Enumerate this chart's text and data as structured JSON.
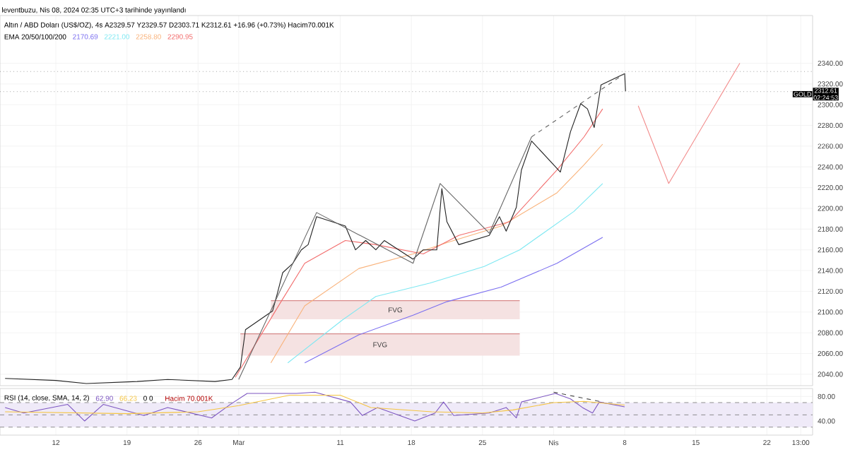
{
  "chart_data": [
    {
      "type": "line",
      "title": "Altın / ABD Doları (US$/OZ), 4s  A2329.57  Y2329.57  D2303.71  K2312.61  +16.96 (+0.73%)  Hacim70.001K",
      "legend_title": "EMA 20/50/100/200",
      "legend": "top left",
      "grid": true,
      "tick_labels": "y",
      "xlim": [
        "2024-02-06T12:00",
        "2024-04-26T12:00"
      ],
      "ylim": [
        2029,
        2386
      ],
      "xticks": [
        {
          "value": "2024-02-12",
          "label": null
        },
        {
          "value": "2024-02-19",
          "label": null
        },
        {
          "value": "2024-02-26",
          "label": null
        },
        {
          "value": "2024-03-01",
          "label": null
        },
        {
          "value": "2024-03-11",
          "label": null
        },
        {
          "value": "2024-03-18",
          "label": null
        },
        {
          "value": "2024-03-25",
          "label": null
        },
        {
          "value": "2024-04-01",
          "label": null
        },
        {
          "value": "2024-04-08",
          "label": null
        },
        {
          "value": "2024-04-15",
          "label": null
        },
        {
          "value": "2024-04-22",
          "label": null
        },
        {
          "value": "2024-04-25T08:00",
          "label": null
        }
      ],
      "yticks": [
        {
          "value": 2040,
          "label": "2040.00"
        },
        {
          "value": 2060,
          "label": "2060.00"
        },
        {
          "value": 2080,
          "label": "2080.00"
        },
        {
          "value": 2100,
          "label": "2100.00"
        },
        {
          "value": 2120,
          "label": "2120.00"
        },
        {
          "value": 2140,
          "label": "2140.00"
        },
        {
          "value": 2160,
          "label": "2160.00"
        },
        {
          "value": 2180,
          "label": "2180.00"
        },
        {
          "value": 2200,
          "label": "2200.00"
        },
        {
          "value": 2220,
          "label": "2220.00"
        },
        {
          "value": 2240,
          "label": "2240.00"
        },
        {
          "value": 2260,
          "label": "2260.00"
        },
        {
          "value": 2280,
          "label": "2280.00"
        },
        {
          "value": 2300,
          "label": "2300.00"
        },
        {
          "value": 2320,
          "label": "2320.00"
        },
        {
          "value": 2340,
          "label": "2340.00"
        }
      ],
      "series": [
        {
          "type": "line",
          "name": "FVG",
          "color": "#d98c8c",
          "x": [
            "2024-03-04T04:00",
            "2024-03-28T16:00"
          ],
          "values": [
            2111,
            2111
          ],
          "lower": [
            2093,
            2093
          ],
          "upper": [
            2111,
            2111
          ]
        },
        {
          "type": "line",
          "name": "FVG",
          "color": "#d98c8c",
          "x": [
            "2024-03-01T04:00",
            "2024-03-28T16:00"
          ],
          "values": [
            2079,
            2079
          ],
          "lower": [
            2058,
            2058
          ],
          "upper": [
            2079,
            2079
          ]
        },
        {
          "name": "2170.69",
          "color": "#7b6ff0",
          "x": [
            "2024-03-07T12:00",
            "2024-03-12T20:00",
            "2024-03-18T04:00",
            "2024-03-21T12:00",
            "2024-03-26T20:00",
            "2024-04-01T08:00",
            "2024-04-05T20:00"
          ],
          "values": [
            2051,
            2078,
            2097,
            2110,
            2124,
            2147,
            2172
          ]
        },
        {
          "name": "2221.00",
          "color": "#7ee8f2",
          "x": [
            "2024-03-05T20:00",
            "2024-03-11T04:00",
            "2024-03-14T12:00",
            "2024-03-19T20:00",
            "2024-03-25T04:00",
            "2024-03-28T16:00",
            "2024-04-03",
            "2024-04-05T20:00"
          ],
          "values": [
            2051,
            2092,
            2115,
            2128,
            2144,
            2160,
            2197,
            2224
          ]
        },
        {
          "name": "2258.80",
          "color": "#f9b27a",
          "x": [
            "2024-03-04T04:00",
            "2024-03-07T12:00",
            "2024-03-12T20:00",
            "2024-03-18T04:00",
            "2024-03-21T12:00",
            "2024-03-26T20:00",
            "2024-04-01T08:00",
            "2024-04-04",
            "2024-04-05T20:00"
          ],
          "values": [
            2051,
            2106,
            2142,
            2156,
            2167,
            2183,
            2215,
            2242,
            2262
          ]
        },
        {
          "name": "2290.95",
          "color": "#f26d6d",
          "x": [
            "2024-02-29T16:00",
            "2024-03-05T04:00",
            "2024-03-07T12:00",
            "2024-03-11T12:00",
            "2024-03-14T12:00",
            "2024-03-19T04:00",
            "2024-03-22T16:00",
            "2024-03-27T16:00",
            "2024-04-01T08:00",
            "2024-04-04",
            "2024-04-05T20:00"
          ],
          "values": [
            2037,
            2110,
            2147,
            2169,
            2165,
            2156,
            2174,
            2187,
            2237,
            2269,
            2296
          ]
        },
        {
          "color": "#222222",
          "x": [
            "2024-02-07",
            "2024-02-12",
            "2024-02-15",
            "2024-02-20",
            "2024-02-23",
            "2024-02-27T16:00",
            "2024-02-29T08:00",
            "2024-03-01T04:00",
            "2024-03-01T16:00",
            "2024-03-04T08:00",
            "2024-03-04T20:00",
            "2024-03-05T08:00",
            "2024-03-06T08:00",
            "2024-03-07T04:00",
            "2024-03-07T20:00",
            "2024-03-08T16:00",
            "2024-03-11T12:00",
            "2024-03-12T12:00",
            "2024-03-13T12:00",
            "2024-03-14T12:00",
            "2024-03-15T08:00",
            "2024-03-18T04:00",
            "2024-03-19T04:00",
            "2024-03-20T12:00",
            "2024-03-21",
            "2024-03-21T12:00",
            "2024-03-22T16:00",
            "2024-03-25T16:00",
            "2024-03-26T16:00",
            "2024-03-27T08:00",
            "2024-03-28T08:00",
            "2024-03-28T20:00",
            "2024-03-29T20:00",
            "2024-04-01T16:00",
            "2024-04-02T16:00",
            "2024-04-03T16:00",
            "2024-04-04T08:00",
            "2024-04-05",
            "2024-04-05T16:00",
            "2024-04-08",
            "2024-04-08T02:00"
          ],
          "values": [
            2036,
            2034,
            2031,
            2033,
            2035,
            2033,
            2035,
            2047,
            2083,
            2101,
            2119,
            2138,
            2147,
            2160,
            2165,
            2192,
            2183,
            2160,
            2169,
            2160,
            2169,
            2151,
            2160,
            2160,
            2219,
            2187,
            2165,
            2174,
            2192,
            2178,
            2201,
            2237,
            2265,
            2235,
            2274,
            2301,
            2296,
            2278,
            2319,
            2330,
            2313
          ]
        },
        {
          "color": "#666666",
          "x": [
            "2024-03-01",
            "2024-03-08T16:00",
            "2024-03-18T04:00",
            "2024-03-20T20:00",
            "2024-03-25T16:00",
            "2024-03-29T20:00"
          ],
          "values": [
            2035,
            2196,
            2147,
            2224,
            2176,
            2269
          ]
        },
        {
          "color": "#666666",
          "line_style": "dashed",
          "x": [
            "2024-03-29T20:00",
            "2024-04-08"
          ],
          "values": [
            2269,
            2330
          ]
        },
        {
          "color": "#f28b8b",
          "x": [
            "2024-04-09T08:00",
            "2024-04-12T08:00",
            "2024-04-19T08:00"
          ],
          "values": [
            2299,
            2224,
            2340
          ]
        }
      ],
      "ref_lines": [
        {
          "axis": "y",
          "value": 2332,
          "line_style": "dotted"
        },
        {
          "axis": "y",
          "value": 2312.61,
          "label": "GOLD",
          "line_style": "dotted"
        }
      ],
      "annotations": [
        "leventbuzu, Nis 08, 2024 02:35 UTC+3 tarihinde yayınlandı",
        "2312.61",
        "02:24:53"
      ]
    },
    {
      "type": "line",
      "title": "RSI (14, close, SMA, 14, 2)",
      "legend": "top left",
      "grid": true,
      "xlim": [
        "2024-02-06T12:00",
        "2024-04-26T12:00"
      ],
      "ylim": [
        17,
        93
      ],
      "xticks": [
        {
          "value": "2024-02-12",
          "label": "12"
        },
        {
          "value": "2024-02-19",
          "label": "19"
        },
        {
          "value": "2024-02-26",
          "label": "26"
        },
        {
          "value": "2024-03-01",
          "label": "Mar"
        },
        {
          "value": "2024-03-11",
          "label": "11"
        },
        {
          "value": "2024-03-18",
          "label": "18"
        },
        {
          "value": "2024-03-25",
          "label": "25"
        },
        {
          "value": "2024-04-01",
          "label": "Nis"
        },
        {
          "value": "2024-04-08",
          "label": "8"
        },
        {
          "value": "2024-04-15",
          "label": "15"
        },
        {
          "value": "2024-04-22",
          "label": "22"
        },
        {
          "value": "2024-04-25T08:00",
          "label": "13:00"
        }
      ],
      "yticks": [
        {
          "value": 80,
          "label": "80.00"
        },
        {
          "value": 40,
          "label": "40.00"
        }
      ],
      "bands": [
        {
          "axis": "y",
          "from": 30,
          "to": 70,
          "color": "#efeaf8"
        }
      ],
      "ref_lines": [
        {
          "axis": "y",
          "value": 70,
          "line_style": "dashed"
        },
        {
          "axis": "y",
          "value": 50,
          "line_style": "dashed"
        },
        {
          "axis": "y",
          "value": 30,
          "line_style": "dashed"
        }
      ],
      "series": [
        {
          "name": "62.90",
          "color": "#7e57c2",
          "x": [
            "2024-02-07",
            "2024-02-08T20:00",
            "2024-02-13T04:00",
            "2024-02-14T20:00",
            "2024-02-16T16:00",
            "2024-02-20T16:00",
            "2024-02-23",
            "2024-02-27T08:00",
            "2024-02-29T04:00",
            "2024-03-01T20:00",
            "2024-03-06T16:00",
            "2024-03-08T12:00",
            "2024-03-12",
            "2024-03-13T04:00",
            "2024-03-14T16:00",
            "2024-03-18T08:00",
            "2024-03-20T08:00",
            "2024-03-21T04:00",
            "2024-03-22T04:00",
            "2024-03-25T16:00",
            "2024-03-27T08:00",
            "2024-03-28T08:00",
            "2024-03-28T20:00",
            "2024-04-01T04:00",
            "2024-04-02T16:00",
            "2024-04-03T20:00",
            "2024-04-04T20:00",
            "2024-04-05T12:00",
            "2024-04-08"
          ],
          "values": [
            62,
            53,
            67,
            40,
            67,
            49,
            62,
            45,
            67,
            85,
            85,
            87,
            71,
            49,
            62,
            40,
            53,
            71,
            49,
            53,
            62,
            45,
            71,
            85,
            76,
            62,
            53,
            71,
            63
          ]
        },
        {
          "name": "66.23",
          "color": "#f5c542",
          "x": [
            "2024-02-07",
            "2024-02-19",
            "2024-02-26",
            "2024-03-01",
            "2024-03-06",
            "2024-03-11",
            "2024-03-14",
            "2024-03-20",
            "2024-03-25",
            "2024-03-28",
            "2024-04-01",
            "2024-04-04",
            "2024-04-08"
          ],
          "values": [
            55,
            52,
            55,
            65,
            82,
            82,
            62,
            55,
            53,
            58,
            70,
            72,
            66
          ]
        },
        {
          "color": "#444444",
          "line_style": "dashed",
          "x": [
            "2024-04-01",
            "2024-04-05T12:00"
          ],
          "values": [
            87,
            72
          ]
        }
      ],
      "annotations": [
        "0 0",
        "Hacim 70.001K"
      ]
    }
  ]
}
